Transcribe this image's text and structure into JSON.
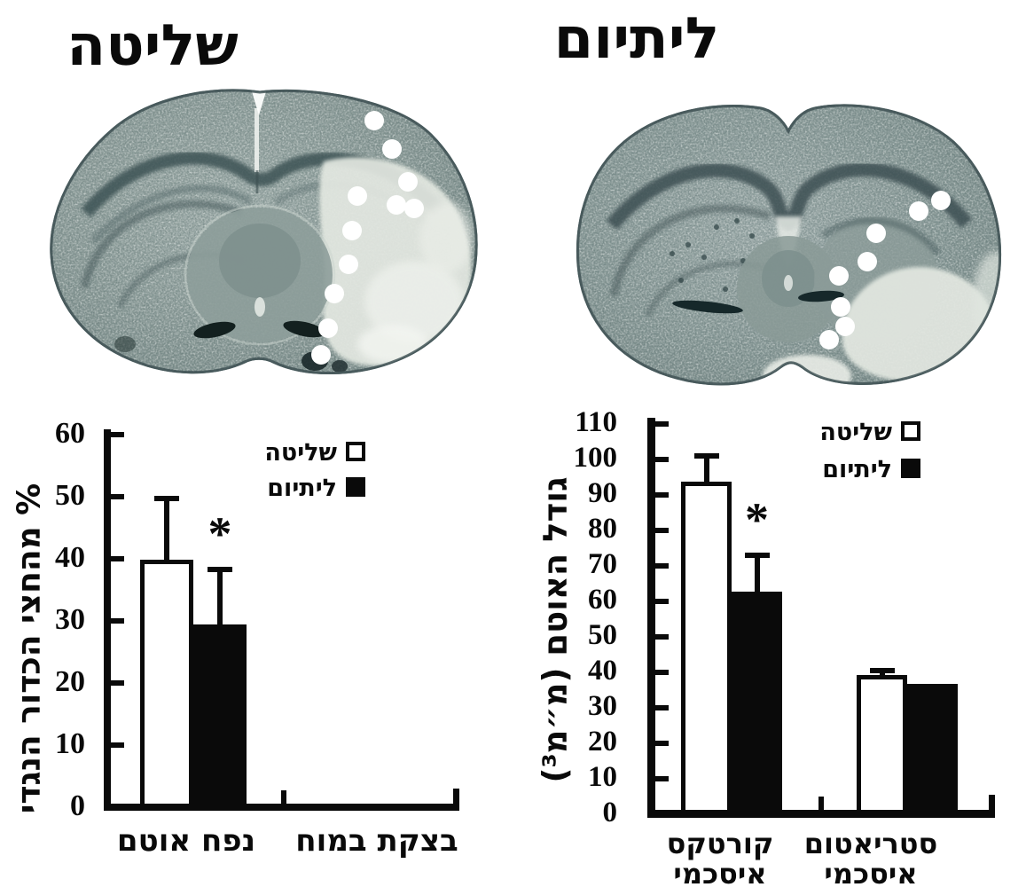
{
  "figure": {
    "panels": [
      {
        "title": "שליטה",
        "image": "coronal-brain-section-with-infarct-marker-dots"
      },
      {
        "title": "ליתיום",
        "image": "coronal-brain-section-with-infarct-marker-dots"
      }
    ]
  },
  "chart_data": [
    {
      "id": "infarct-percent-chart",
      "type": "bar",
      "title": "",
      "ylabel": "% מהחצי הכדור הנגדי",
      "ylim": [
        0,
        60
      ],
      "ytick_step": 10,
      "yticks": [
        0,
        10,
        20,
        30,
        40,
        50,
        60
      ],
      "grid": false,
      "categories": [
        "נפח אוטם",
        "בצקת במוח"
      ],
      "legend_position": "top-right-inside",
      "legend": [
        {
          "label": "שליטה",
          "marker": "open"
        },
        {
          "label": "ליתיום",
          "marker": "filled"
        }
      ],
      "series": [
        {
          "name": "שליטה",
          "style": "open",
          "values": [
            39.3,
            null
          ],
          "errors": [
            10.3,
            null
          ]
        },
        {
          "name": "ליתיום",
          "style": "filled",
          "values": [
            28.8,
            null
          ],
          "errors": [
            9.4,
            null
          ]
        }
      ],
      "annotations": [
        {
          "text": "*",
          "series": 1,
          "category": 0
        }
      ]
    },
    {
      "id": "infarct-size-chart",
      "type": "bar",
      "title": "",
      "ylabel": "גודל האוטם (מ״מ³)",
      "ylim": [
        0,
        110
      ],
      "ytick_step": 10,
      "yticks": [
        0,
        10,
        20,
        30,
        40,
        50,
        60,
        70,
        80,
        90,
        100,
        110
      ],
      "grid": false,
      "categories": [
        "קורטקס\nאיסכמי",
        "סטריאטום\nאיסכמי"
      ],
      "legend_position": "top-right-inside",
      "legend": [
        {
          "label": "שליטה",
          "marker": "open"
        },
        {
          "label": "ליתיום",
          "marker": "filled"
        }
      ],
      "series": [
        {
          "name": "שליטה",
          "style": "open",
          "values": [
            92.5,
            38
          ],
          "errors": [
            8,
            2
          ]
        },
        {
          "name": "ליתיום",
          "style": "filled",
          "values": [
            61.5,
            35.5
          ],
          "errors": [
            11,
            0
          ]
        }
      ],
      "annotations": [
        {
          "text": "*",
          "series": 1,
          "category": 0
        }
      ]
    }
  ],
  "colors": {
    "ink": "#0a0a0a",
    "background": "#ffffff",
    "bar_open": "#ffffff",
    "bar_filled": "#0a0a0a",
    "brain_tissue": "#8a9a97",
    "brain_dark_band": "#3e5254",
    "infarct_pale": "#e3e8e1",
    "marker_dot": "#ffffff"
  }
}
